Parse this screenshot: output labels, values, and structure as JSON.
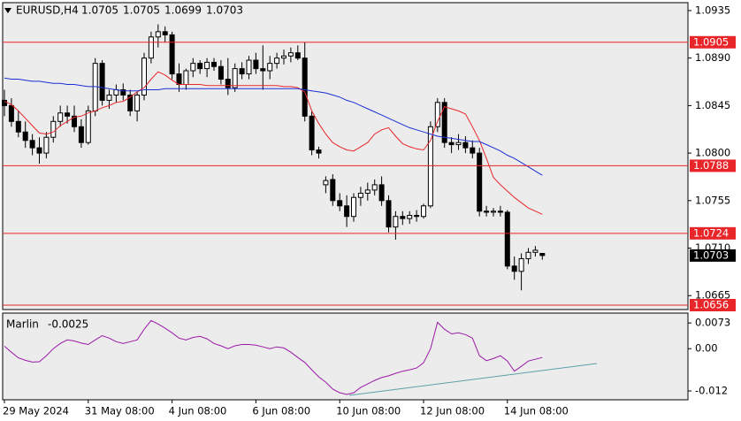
{
  "chart_data": [
    {
      "type": "candlestick",
      "title": "EURUSD,H4",
      "categories": [
        "29 May 2024",
        null,
        null,
        null,
        null,
        null,
        null,
        null,
        null,
        null,
        null,
        null,
        "31 May 08:00",
        null,
        null,
        null,
        null,
        null,
        null,
        null,
        null,
        null,
        null,
        null,
        "4 Jun 08:00",
        null,
        null,
        null,
        null,
        null,
        null,
        null,
        null,
        null,
        null,
        null,
        "6 Jun 08:00",
        null,
        null,
        null,
        null,
        null,
        null,
        null,
        null,
        null,
        null,
        null,
        "10 Jun 08:00",
        null,
        null,
        null,
        null,
        null,
        null,
        null,
        null,
        null,
        null,
        null,
        "12 Jun 08:00",
        null,
        null,
        null,
        null,
        null,
        null,
        null,
        null,
        null,
        null,
        null,
        "14 Jun 08:00",
        null,
        null,
        null,
        null,
        null
      ],
      "open": [
        1.085,
        1.0845,
        1.083,
        1.082,
        1.0812,
        1.0805,
        1.08,
        1.0815,
        1.083,
        1.0838,
        1.0835,
        1.0825,
        1.081,
        1.084,
        1.0885,
        1.085,
        1.0855,
        1.086,
        1.0855,
        1.084,
        1.0855,
        1.089,
        1.091,
        1.0915,
        1.0912,
        1.0875,
        1.0865,
        1.0878,
        1.0885,
        1.088,
        1.0886,
        1.0882,
        1.087,
        1.0862,
        1.088,
        1.0875,
        1.0888,
        1.088,
        1.0878,
        1.0885,
        1.089,
        1.0892,
        1.0895,
        1.089,
        1.0835,
        1.0803,
        1.077,
        1.0775,
        1.0755,
        1.075,
        1.074,
        1.0758,
        1.0762,
        1.0765,
        1.077,
        1.0755,
        1.073,
        1.074,
        1.0738,
        1.0741,
        1.074,
        1.075,
        1.0825,
        1.0848,
        1.081,
        1.0808,
        1.081,
        1.0805,
        1.08,
        1.0745,
        1.0744,
        1.0745,
        1.0744,
        1.0693,
        1.0688,
        1.07,
        1.0706,
        1.0705
      ],
      "high": [
        1.086,
        1.0852,
        1.084,
        1.083,
        1.0818,
        1.0815,
        1.082,
        1.0835,
        1.0845,
        1.0845,
        1.0845,
        1.0832,
        1.0845,
        1.089,
        1.0888,
        1.086,
        1.0865,
        1.0866,
        1.086,
        1.0858,
        1.0895,
        1.0915,
        1.0922,
        1.092,
        1.0915,
        1.0885,
        1.088,
        1.089,
        1.0888,
        1.089,
        1.089,
        1.0888,
        1.089,
        1.0885,
        1.0886,
        1.0892,
        1.0895,
        1.0902,
        1.0892,
        1.0895,
        1.0898,
        1.09,
        1.0902,
        1.0905,
        1.084,
        1.0806,
        1.0778,
        1.078,
        1.0762,
        1.076,
        1.0762,
        1.0768,
        1.0772,
        1.0775,
        1.0778,
        1.076,
        1.0745,
        1.0745,
        1.0745,
        1.0746,
        1.0752,
        1.083,
        1.0852,
        1.0852,
        1.0815,
        1.0818,
        1.0816,
        1.0812,
        1.0805,
        1.075,
        1.0748,
        1.075,
        1.0746,
        1.0702,
        1.0705,
        1.071,
        1.0712,
        1.0705
      ],
      "low": [
        1.0835,
        1.0825,
        1.0815,
        1.0805,
        1.0798,
        1.079,
        1.0795,
        1.081,
        1.0825,
        1.0828,
        1.082,
        1.0805,
        1.0808,
        1.0835,
        1.0845,
        1.0842,
        1.0848,
        1.085,
        1.0835,
        1.083,
        1.085,
        1.0885,
        1.09,
        1.0905,
        1.087,
        1.0858,
        1.086,
        1.0872,
        1.0875,
        1.0872,
        1.0878,
        1.0865,
        1.0855,
        1.0858,
        1.087,
        1.087,
        1.0875,
        1.086,
        1.087,
        1.088,
        1.0884,
        1.0886,
        1.0888,
        1.083,
        1.0798,
        1.0795,
        1.0762,
        1.075,
        1.0745,
        1.073,
        1.0735,
        1.075,
        1.0755,
        1.076,
        1.075,
        1.0725,
        1.0718,
        1.0732,
        1.0733,
        1.0735,
        1.0738,
        1.0748,
        1.082,
        1.0805,
        1.08,
        1.0803,
        1.08,
        1.0795,
        1.074,
        1.074,
        1.074,
        1.074,
        1.069,
        1.068,
        1.067,
        1.0695,
        1.0702,
        1.0699
      ],
      "close": [
        1.0845,
        1.083,
        1.082,
        1.0812,
        1.0805,
        1.08,
        1.0815,
        1.083,
        1.0838,
        1.0835,
        1.0825,
        1.081,
        1.084,
        1.0885,
        1.085,
        1.0855,
        1.086,
        1.0855,
        1.084,
        1.0855,
        1.089,
        1.091,
        1.0915,
        1.0912,
        1.0875,
        1.0865,
        1.0878,
        1.0885,
        1.088,
        1.0886,
        1.0882,
        1.087,
        1.0862,
        1.088,
        1.0875,
        1.0888,
        1.088,
        1.0878,
        1.0885,
        1.089,
        1.0892,
        1.0895,
        1.089,
        1.0835,
        1.0803,
        1.08,
        1.0774,
        1.0755,
        1.075,
        1.074,
        1.0758,
        1.0762,
        1.0765,
        1.077,
        1.0755,
        1.073,
        1.074,
        1.0738,
        1.0741,
        1.074,
        1.075,
        1.0825,
        1.0848,
        1.081,
        1.0808,
        1.081,
        1.0805,
        1.08,
        1.0745,
        1.0744,
        1.0745,
        1.0744,
        1.0693,
        1.0688,
        1.07,
        1.0706,
        1.0708,
        1.0703
      ],
      "up_color": "#ffffff",
      "down_color": "#000000",
      "series": [
        {
          "color": "#e8262a",
          "values": [
            1.0849,
            1.0846,
            1.084,
            1.0833,
            1.0826,
            1.0819,
            1.0818,
            1.082,
            1.0826,
            1.083,
            1.0834,
            1.0835,
            1.0838,
            1.084,
            1.0843,
            1.0845,
            1.0848,
            1.0849,
            1.0853,
            1.0858,
            1.0862,
            1.087,
            1.0877,
            1.0874,
            1.0869,
            1.0865,
            1.0865,
            1.0865,
            1.0865,
            1.0864,
            1.0864,
            1.0864,
            1.0864,
            1.0864,
            1.0864,
            1.0864,
            1.0864,
            1.0864,
            1.0864,
            1.0864,
            1.0863,
            1.0863,
            1.0862,
            1.0858,
            1.084,
            1.0828,
            1.0818,
            1.081,
            1.0806,
            1.0803,
            1.0802,
            1.0806,
            1.081,
            1.0818,
            1.0822,
            1.0824,
            1.0816,
            1.0809,
            1.0806,
            1.0804,
            1.0803,
            1.0812,
            1.083,
            1.0844,
            1.0842,
            1.084,
            1.0837,
            1.0825,
            1.0812,
            1.0795,
            1.0777,
            1.077,
            1.0764,
            1.0758,
            1.0753,
            1.0748,
            1.0745,
            1.0742
          ]
        },
        {
          "color": "#1a2fd6",
          "values": [
            1.0871,
            1.087,
            1.087,
            1.0869,
            1.0868,
            1.0868,
            1.0867,
            1.0866,
            1.0866,
            1.0865,
            1.0865,
            1.0864,
            1.0863,
            1.0863,
            1.0862,
            1.0861,
            1.086,
            1.0859,
            1.0859,
            1.0859,
            1.086,
            1.086,
            1.086,
            1.0861,
            1.0861,
            1.0861,
            1.0861,
            1.0861,
            1.0861,
            1.0861,
            1.0861,
            1.0861,
            1.0861,
            1.0861,
            1.0861,
            1.0861,
            1.0861,
            1.0861,
            1.0861,
            1.0861,
            1.0861,
            1.0861,
            1.0861,
            1.086,
            1.0859,
            1.0858,
            1.0857,
            1.0855,
            1.0853,
            1.085,
            1.0848,
            1.0845,
            1.0842,
            1.0839,
            1.0836,
            1.0833,
            1.083,
            1.0827,
            1.0824,
            1.0822,
            1.082,
            1.0818,
            1.0816,
            1.0815,
            1.0814,
            1.0813,
            1.0812,
            1.0811,
            1.0811,
            1.0808,
            1.0805,
            1.0802,
            1.0798,
            1.0795,
            1.0791,
            1.0787,
            1.0783,
            1.0779
          ]
        }
      ],
      "levels": [
        1.0905,
        1.0788,
        1.0724,
        1.0656
      ],
      "level_color": "#e8262a",
      "ylim": [
        1.06518,
        1.09425
      ],
      "yticks": [
        1.0935,
        {
          "value": 1.089,
          "label": "1.0890"
        },
        1.0845,
        {
          "value": 1.08,
          "label": "1.0800"
        },
        1.0755,
        {
          "value": 1.071,
          "label": "1.0710"
        },
        1.0665
      ]
    },
    {
      "type": "line",
      "title": "Marlin",
      "color": "#9b1aa8",
      "values": [
        0.0007,
        -0.001,
        -0.0026,
        -0.0033,
        -0.0038,
        -0.0037,
        -0.002,
        0.0,
        0.0015,
        0.0025,
        0.0022,
        0.0016,
        0.0012,
        0.0025,
        0.0037,
        0.003,
        0.002,
        0.0015,
        0.002,
        0.0025,
        0.0055,
        0.008,
        0.007,
        0.0058,
        0.0045,
        0.003,
        0.0025,
        0.0032,
        0.0035,
        0.0028,
        0.0015,
        0.0008,
        0.0,
        0.0008,
        0.0012,
        0.0012,
        0.001,
        0.0005,
        0.0,
        0.0005,
        0.0002,
        -0.001,
        -0.0025,
        -0.0039,
        -0.006,
        -0.008,
        -0.0095,
        -0.0115,
        -0.0125,
        -0.013,
        -0.0125,
        -0.011,
        -0.01,
        -0.009,
        -0.0082,
        -0.0077,
        -0.007,
        -0.0064,
        -0.006,
        -0.0055,
        -0.004,
        0.0,
        0.0075,
        0.0055,
        0.0042,
        0.0045,
        0.004,
        0.003,
        -0.002,
        -0.0034,
        -0.0028,
        -0.002,
        -0.0035,
        -0.0064,
        -0.005,
        -0.0035,
        -0.003,
        -0.0025
      ],
      "ylim": [
        -0.0145,
        0.0101
      ],
      "yticks": [
        0.0073,
        {
          "value": 0,
          "label": "0.00"
        },
        -0.012
      ]
    }
  ]
}
